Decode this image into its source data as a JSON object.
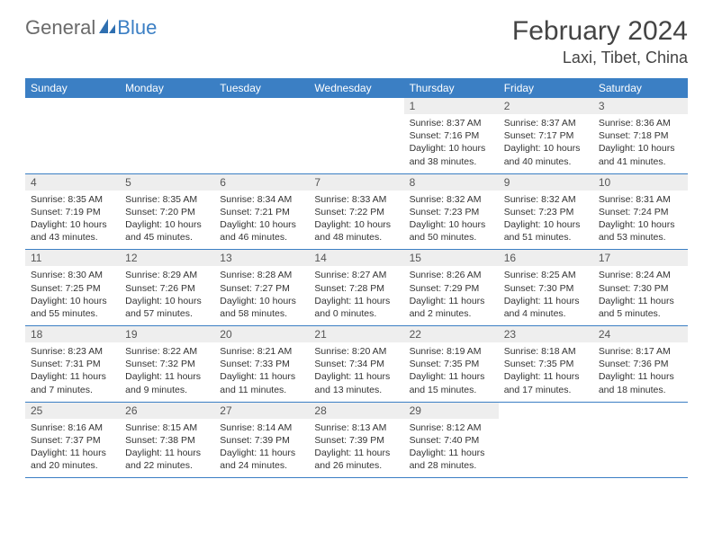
{
  "logo": {
    "text1": "General",
    "text2": "Blue"
  },
  "title": "February 2024",
  "location": "Laxi, Tibet, China",
  "colors": {
    "header_bg": "#3b7fc4",
    "header_text": "#ffffff",
    "daynum_bg": "#eeeeee",
    "body_text": "#333333",
    "logo_gray": "#6a6a6a",
    "logo_blue": "#3b7fc4"
  },
  "day_headers": [
    "Sunday",
    "Monday",
    "Tuesday",
    "Wednesday",
    "Thursday",
    "Friday",
    "Saturday"
  ],
  "weeks": [
    [
      {
        "empty": true
      },
      {
        "empty": true
      },
      {
        "empty": true
      },
      {
        "empty": true
      },
      {
        "num": "1",
        "sunrise": "Sunrise: 8:37 AM",
        "sunset": "Sunset: 7:16 PM",
        "daylight1": "Daylight: 10 hours",
        "daylight2": "and 38 minutes."
      },
      {
        "num": "2",
        "sunrise": "Sunrise: 8:37 AM",
        "sunset": "Sunset: 7:17 PM",
        "daylight1": "Daylight: 10 hours",
        "daylight2": "and 40 minutes."
      },
      {
        "num": "3",
        "sunrise": "Sunrise: 8:36 AM",
        "sunset": "Sunset: 7:18 PM",
        "daylight1": "Daylight: 10 hours",
        "daylight2": "and 41 minutes."
      }
    ],
    [
      {
        "num": "4",
        "sunrise": "Sunrise: 8:35 AM",
        "sunset": "Sunset: 7:19 PM",
        "daylight1": "Daylight: 10 hours",
        "daylight2": "and 43 minutes."
      },
      {
        "num": "5",
        "sunrise": "Sunrise: 8:35 AM",
        "sunset": "Sunset: 7:20 PM",
        "daylight1": "Daylight: 10 hours",
        "daylight2": "and 45 minutes."
      },
      {
        "num": "6",
        "sunrise": "Sunrise: 8:34 AM",
        "sunset": "Sunset: 7:21 PM",
        "daylight1": "Daylight: 10 hours",
        "daylight2": "and 46 minutes."
      },
      {
        "num": "7",
        "sunrise": "Sunrise: 8:33 AM",
        "sunset": "Sunset: 7:22 PM",
        "daylight1": "Daylight: 10 hours",
        "daylight2": "and 48 minutes."
      },
      {
        "num": "8",
        "sunrise": "Sunrise: 8:32 AM",
        "sunset": "Sunset: 7:23 PM",
        "daylight1": "Daylight: 10 hours",
        "daylight2": "and 50 minutes."
      },
      {
        "num": "9",
        "sunrise": "Sunrise: 8:32 AM",
        "sunset": "Sunset: 7:23 PM",
        "daylight1": "Daylight: 10 hours",
        "daylight2": "and 51 minutes."
      },
      {
        "num": "10",
        "sunrise": "Sunrise: 8:31 AM",
        "sunset": "Sunset: 7:24 PM",
        "daylight1": "Daylight: 10 hours",
        "daylight2": "and 53 minutes."
      }
    ],
    [
      {
        "num": "11",
        "sunrise": "Sunrise: 8:30 AM",
        "sunset": "Sunset: 7:25 PM",
        "daylight1": "Daylight: 10 hours",
        "daylight2": "and 55 minutes."
      },
      {
        "num": "12",
        "sunrise": "Sunrise: 8:29 AM",
        "sunset": "Sunset: 7:26 PM",
        "daylight1": "Daylight: 10 hours",
        "daylight2": "and 57 minutes."
      },
      {
        "num": "13",
        "sunrise": "Sunrise: 8:28 AM",
        "sunset": "Sunset: 7:27 PM",
        "daylight1": "Daylight: 10 hours",
        "daylight2": "and 58 minutes."
      },
      {
        "num": "14",
        "sunrise": "Sunrise: 8:27 AM",
        "sunset": "Sunset: 7:28 PM",
        "daylight1": "Daylight: 11 hours",
        "daylight2": "and 0 minutes."
      },
      {
        "num": "15",
        "sunrise": "Sunrise: 8:26 AM",
        "sunset": "Sunset: 7:29 PM",
        "daylight1": "Daylight: 11 hours",
        "daylight2": "and 2 minutes."
      },
      {
        "num": "16",
        "sunrise": "Sunrise: 8:25 AM",
        "sunset": "Sunset: 7:30 PM",
        "daylight1": "Daylight: 11 hours",
        "daylight2": "and 4 minutes."
      },
      {
        "num": "17",
        "sunrise": "Sunrise: 8:24 AM",
        "sunset": "Sunset: 7:30 PM",
        "daylight1": "Daylight: 11 hours",
        "daylight2": "and 5 minutes."
      }
    ],
    [
      {
        "num": "18",
        "sunrise": "Sunrise: 8:23 AM",
        "sunset": "Sunset: 7:31 PM",
        "daylight1": "Daylight: 11 hours",
        "daylight2": "and 7 minutes."
      },
      {
        "num": "19",
        "sunrise": "Sunrise: 8:22 AM",
        "sunset": "Sunset: 7:32 PM",
        "daylight1": "Daylight: 11 hours",
        "daylight2": "and 9 minutes."
      },
      {
        "num": "20",
        "sunrise": "Sunrise: 8:21 AM",
        "sunset": "Sunset: 7:33 PM",
        "daylight1": "Daylight: 11 hours",
        "daylight2": "and 11 minutes."
      },
      {
        "num": "21",
        "sunrise": "Sunrise: 8:20 AM",
        "sunset": "Sunset: 7:34 PM",
        "daylight1": "Daylight: 11 hours",
        "daylight2": "and 13 minutes."
      },
      {
        "num": "22",
        "sunrise": "Sunrise: 8:19 AM",
        "sunset": "Sunset: 7:35 PM",
        "daylight1": "Daylight: 11 hours",
        "daylight2": "and 15 minutes."
      },
      {
        "num": "23",
        "sunrise": "Sunrise: 8:18 AM",
        "sunset": "Sunset: 7:35 PM",
        "daylight1": "Daylight: 11 hours",
        "daylight2": "and 17 minutes."
      },
      {
        "num": "24",
        "sunrise": "Sunrise: 8:17 AM",
        "sunset": "Sunset: 7:36 PM",
        "daylight1": "Daylight: 11 hours",
        "daylight2": "and 18 minutes."
      }
    ],
    [
      {
        "num": "25",
        "sunrise": "Sunrise: 8:16 AM",
        "sunset": "Sunset: 7:37 PM",
        "daylight1": "Daylight: 11 hours",
        "daylight2": "and 20 minutes."
      },
      {
        "num": "26",
        "sunrise": "Sunrise: 8:15 AM",
        "sunset": "Sunset: 7:38 PM",
        "daylight1": "Daylight: 11 hours",
        "daylight2": "and 22 minutes."
      },
      {
        "num": "27",
        "sunrise": "Sunrise: 8:14 AM",
        "sunset": "Sunset: 7:39 PM",
        "daylight1": "Daylight: 11 hours",
        "daylight2": "and 24 minutes."
      },
      {
        "num": "28",
        "sunrise": "Sunrise: 8:13 AM",
        "sunset": "Sunset: 7:39 PM",
        "daylight1": "Daylight: 11 hours",
        "daylight2": "and 26 minutes."
      },
      {
        "num": "29",
        "sunrise": "Sunrise: 8:12 AM",
        "sunset": "Sunset: 7:40 PM",
        "daylight1": "Daylight: 11 hours",
        "daylight2": "and 28 minutes."
      },
      {
        "empty": true
      },
      {
        "empty": true
      }
    ]
  ]
}
